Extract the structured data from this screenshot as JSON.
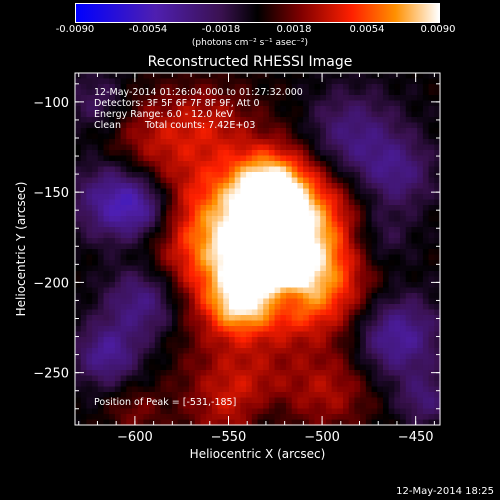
{
  "colorbar": {
    "ticks": [
      "-0.0090",
      "-0.0054",
      "-0.0018",
      "0.0018",
      "0.0054",
      "0.0090"
    ],
    "units": "(photons cm⁻² s⁻¹ asec⁻²)",
    "range": [
      -0.009,
      0.009
    ]
  },
  "chart_data": {
    "type": "heatmap",
    "title": "Reconstructed RHESSI Image",
    "xlabel": "Heliocentric X (arcsec)",
    "ylabel": "Heliocentric Y (arcsec)",
    "xlim": [
      -632,
      -437
    ],
    "ylim": [
      -279,
      -84
    ],
    "xticks": [
      -600,
      -550,
      -500,
      -450
    ],
    "xtick_labels": [
      "−600",
      "−550",
      "−500",
      "−450"
    ],
    "yticks": [
      -100,
      -150,
      -200,
      -250
    ],
    "ytick_labels": [
      "−100",
      "−150",
      "−200",
      "−250"
    ],
    "peak": [
      -531,
      -185
    ],
    "colormap": "rhessi-bicolor: blue→purple (negative), black at zero, red→orange→yellow→white (positive)",
    "annotations": {
      "time_range": "12-May-2014 01:26:04.000 to 01:27:32.000",
      "detectors": "Detectors: 3F 5F 6F 7F 8F 9F, Att 0",
      "energy": "Energy Range: 6.0 - 12.0 keV",
      "clean_label": "Clean",
      "total_counts": "Total counts: 7.42E+03",
      "peak_position": "Position of Peak = [-531,-185]"
    }
  },
  "footer": {
    "timestamp": "12-May-2014 18:25"
  }
}
